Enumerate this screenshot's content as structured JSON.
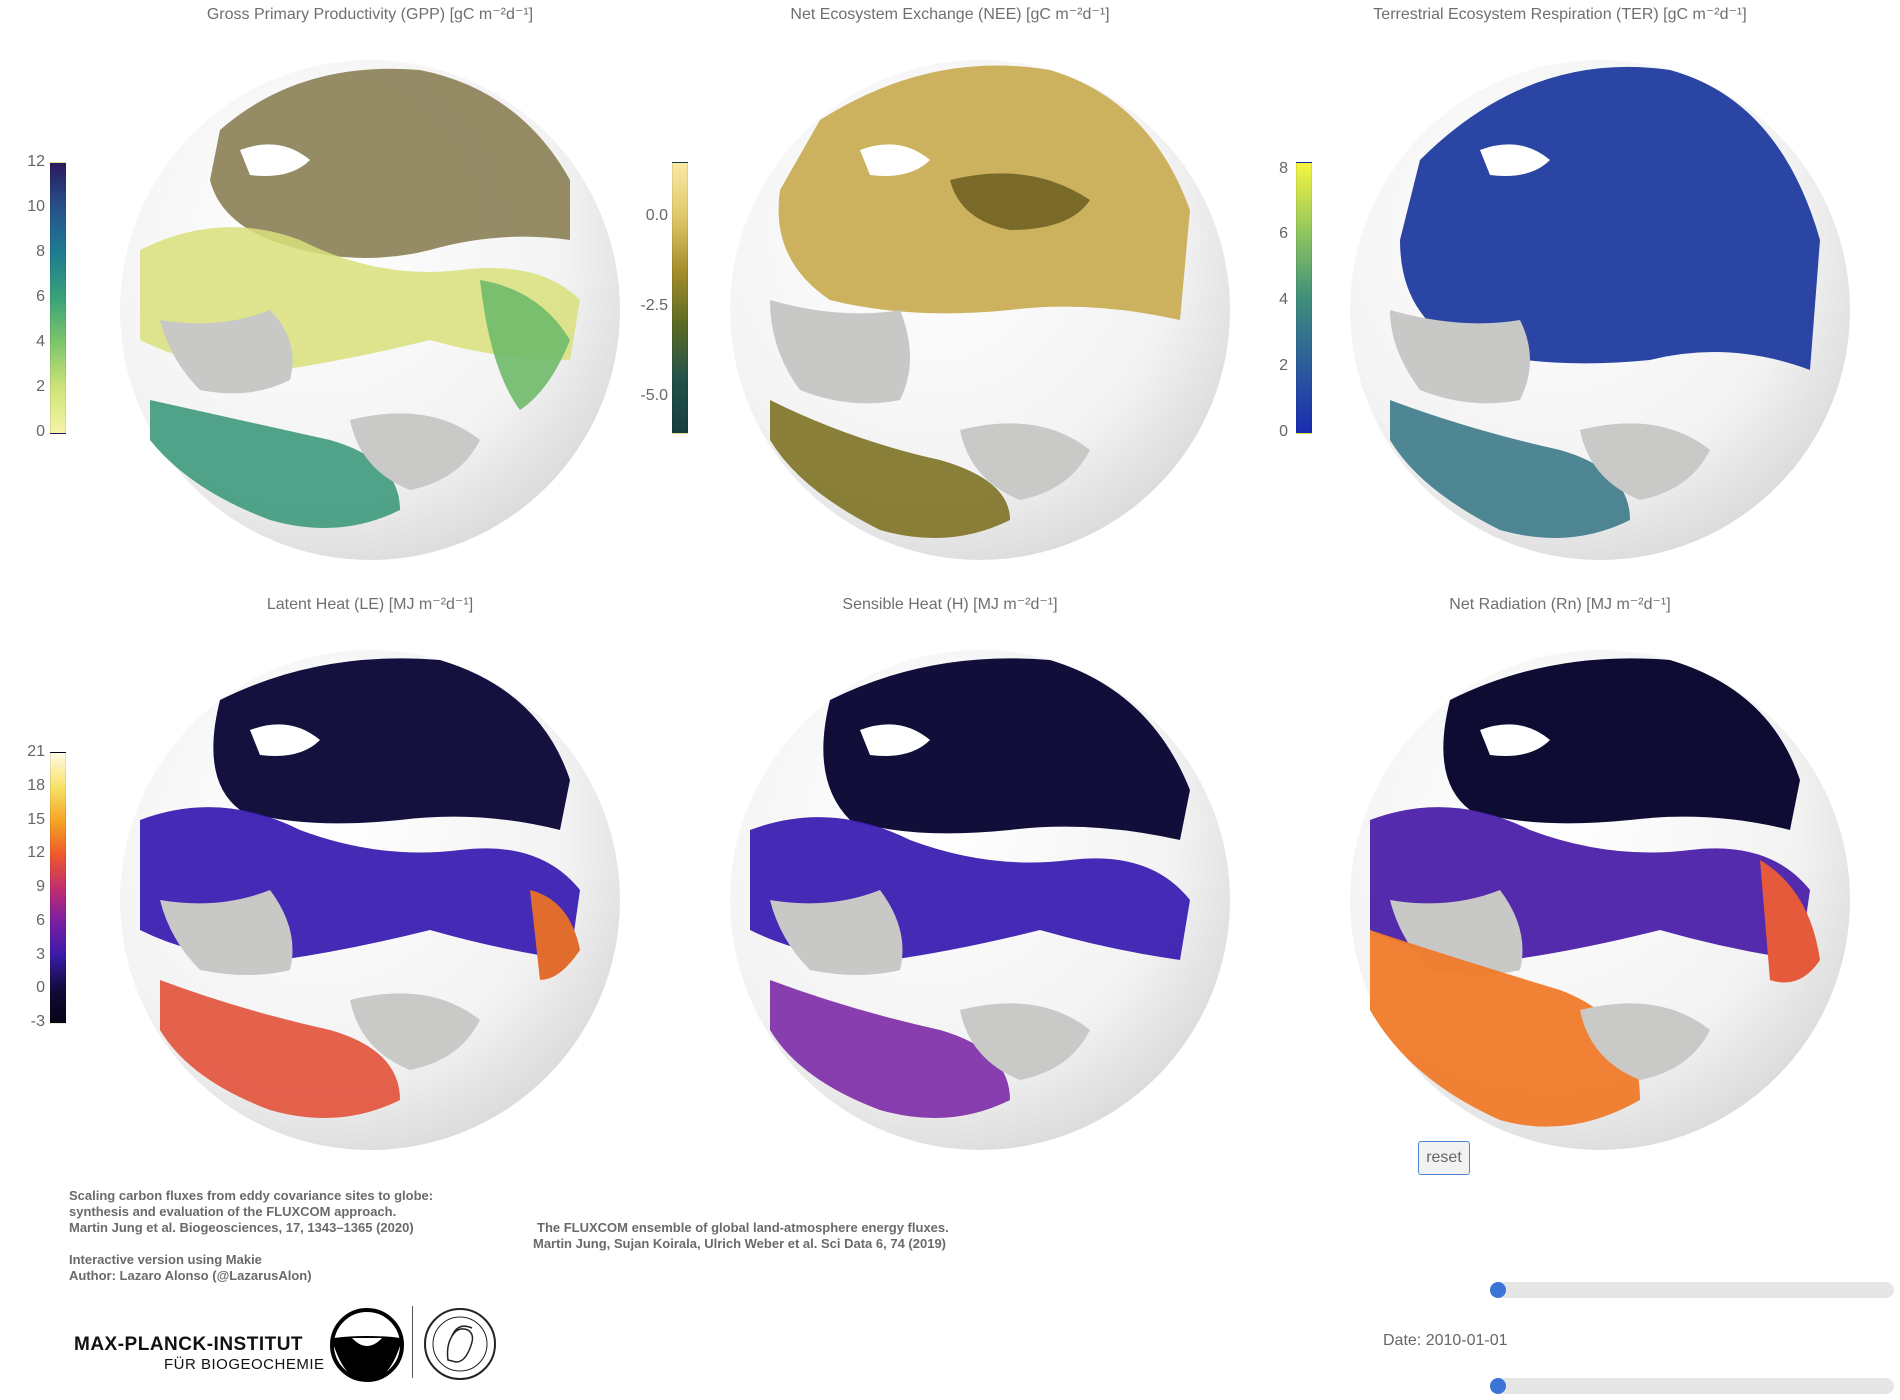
{
  "panels": [
    {
      "title": "Gross Primary Productivity (GPP) [gC m⁻²d⁻¹]",
      "ticks": [
        "12",
        "10",
        "8",
        "6",
        "4",
        "2",
        "0"
      ],
      "colormap": "viridis-like",
      "colors": [
        "#2e1a5c",
        "#2e4d8c",
        "#1f7b8f",
        "#3aa07a",
        "#7ec46a",
        "#c9e27a",
        "#f3f2a4"
      ]
    },
    {
      "title": "Net Ecosystem Exchange (NEE) [gC m⁻²d⁻¹]",
      "ticks": [
        "0.0",
        "-2.5",
        "-5.0"
      ],
      "colormap": "olive-gold",
      "colors": [
        "#f9e7a2",
        "#d8c060",
        "#8c7c1a",
        "#3c6338",
        "#1c4a4a"
      ]
    },
    {
      "title": "Terrestrial Ecosystem Respiration (TER) [gC m⁻²d⁻¹]",
      "ticks": [
        "8",
        "6",
        "4",
        "2",
        "0"
      ],
      "colormap": "blue-green-yellow",
      "colors": [
        "#f6f43f",
        "#8fc75c",
        "#3f8e7a",
        "#2b5b9c",
        "#1a2bb0"
      ]
    },
    {
      "title": "Latent Heat (LE) [MJ m⁻²d⁻¹]",
      "ticks": [
        "21",
        "18",
        "15",
        "12",
        "9",
        "6",
        "3",
        "0",
        "-3"
      ],
      "colormap": "plasma-like",
      "colors": [
        "#fffae0",
        "#f8e36a",
        "#f5a623",
        "#ee5b2b",
        "#c22e6c",
        "#7a1fa3",
        "#3a1aa8",
        "#120b3a",
        "#050417"
      ]
    },
    {
      "title": "Sensible Heat (H) [MJ m⁻²d⁻¹]",
      "ticks": [],
      "colormap": "plasma-like",
      "colors": []
    },
    {
      "title": "Net Radiation (Rn) [MJ m⁻²d⁻¹]",
      "ticks": [],
      "colormap": "plasma-like",
      "colors": []
    }
  ],
  "credits": {
    "left_lines": [
      "Scaling carbon fluxes from eddy covariance sites to globe:",
      "synthesis and evaluation of the FLUXCOM approach.",
      "Martin Jung et al. Biogeosciences, 17, 1343–1365 (2020)",
      "",
      "Interactive version using Makie",
      "Author: Lazaro Alonso (@LazarusAlon)"
    ],
    "mid_lines": [
      "The FLUXCOM ensemble of global land-atmosphere energy fluxes.",
      "Martin Jung, Sujan Koirala,  Ulrich Weber et al. Sci Data 6, 74 (2019)"
    ]
  },
  "controls": {
    "reset_label": "reset",
    "date_label": "Date: 2010-01-01",
    "slider_top_value": 0,
    "slider_bottom_value": 0
  },
  "logo": {
    "line1": "MAX-PLANCK-INSTITUT",
    "line2": "FÜR BIOGEOCHEMIE"
  },
  "chart_data": [
    {
      "type": "heatmap",
      "title": "Gross Primary Productivity (GPP) [gC m⁻²d⁻¹]",
      "colorbar_range": [
        0,
        12
      ],
      "colorbar_ticks": [
        12,
        10,
        8,
        6,
        4,
        2,
        0
      ]
    },
    {
      "type": "heatmap",
      "title": "Net Ecosystem Exchange (NEE) [gC m⁻²d⁻¹]",
      "colorbar_range": [
        -6,
        1.5
      ],
      "colorbar_ticks": [
        0.0,
        -2.5,
        -5.0
      ]
    },
    {
      "type": "heatmap",
      "title": "Terrestrial Ecosystem Respiration (TER) [gC m⁻²d⁻¹]",
      "colorbar_range": [
        0,
        8
      ],
      "colorbar_ticks": [
        8,
        6,
        4,
        2,
        0
      ]
    },
    {
      "type": "heatmap",
      "title": "Latent Heat (LE) [MJ m⁻²d⁻¹]",
      "colorbar_range": [
        -3,
        21
      ],
      "colorbar_ticks": [
        21,
        18,
        15,
        12,
        9,
        6,
        3,
        0,
        -3
      ]
    },
    {
      "type": "heatmap",
      "title": "Sensible Heat (H) [MJ m⁻²d⁻¹]"
    },
    {
      "type": "heatmap",
      "title": "Net Radiation (Rn) [MJ m⁻²d⁻¹]"
    }
  ]
}
